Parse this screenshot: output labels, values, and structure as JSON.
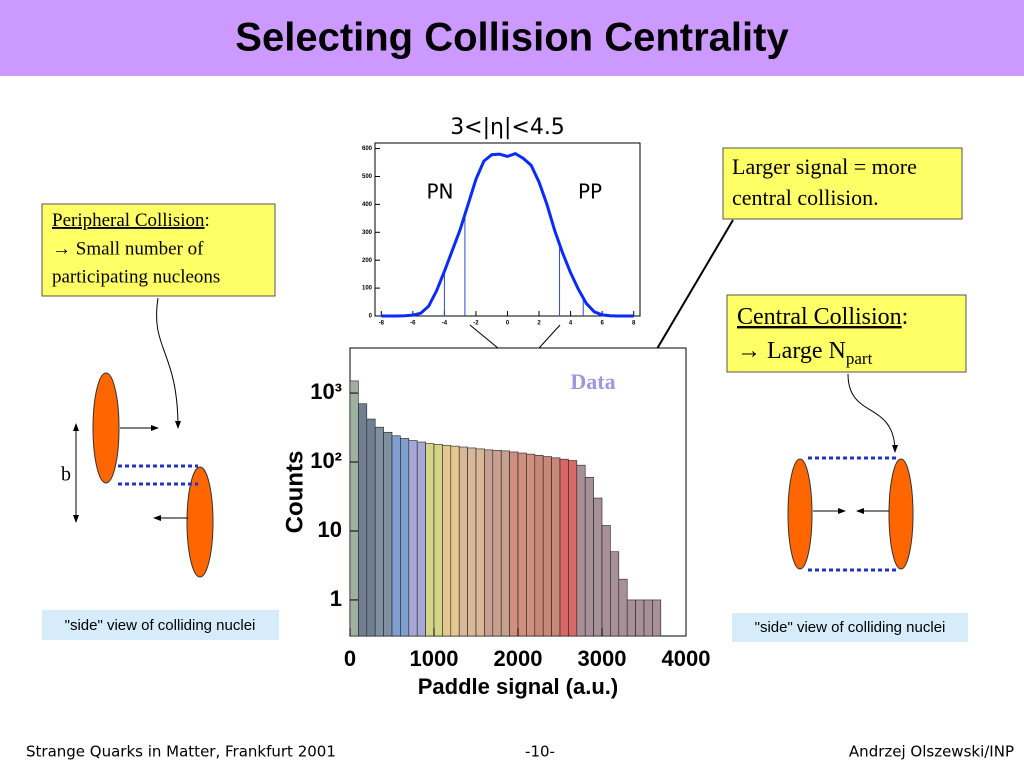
{
  "header": {
    "title": "Selecting Collision Centrality"
  },
  "peripheral": {
    "heading": "Peripheral Collision",
    "heading_rest": ":",
    "lines": [
      "→ Small number of",
      "participating nucleons"
    ]
  },
  "central": {
    "heading": "Central Collision",
    "heading_rest": ":",
    "line": "→ Large N",
    "subscript": "part"
  },
  "signal_note": {
    "lines": [
      "Larger signal = more",
      "central collision."
    ]
  },
  "impact_label": "b",
  "captions": [
    "\"side\" view of colliding nuclei",
    "\"side\" view of colliding nuclei"
  ],
  "footer": {
    "left": "Strange Quarks in Matter, Frankfurt 2001",
    "center": "-10-",
    "right": "Andrzej Olszewski/INP"
  },
  "chart_data": [
    {
      "type": "line",
      "title": "3<|η|<4.5",
      "annotations": [
        "PN",
        "PP"
      ],
      "x": [
        -8,
        -7.5,
        -7,
        -6.5,
        -6,
        -5.5,
        -5,
        -4.5,
        -4,
        -3.5,
        -3,
        -2.5,
        -2,
        -1.5,
        -1,
        -0.5,
        0,
        0.5,
        1,
        1.5,
        2,
        2.5,
        3,
        3.5,
        4,
        4.5,
        5,
        5.5,
        6,
        6.5,
        7,
        7.5,
        8
      ],
      "series": [
        {
          "color": "#0a2bff",
          "values": [
            0,
            0,
            0,
            1,
            3,
            10,
            35,
            90,
            160,
            235,
            310,
            400,
            490,
            555,
            578,
            580,
            572,
            582,
            565,
            540,
            480,
            400,
            305,
            225,
            155,
            95,
            45,
            15,
            4,
            1,
            0,
            0,
            0
          ]
        }
      ],
      "cut_lines": [
        -4,
        -2.7,
        3.3,
        4.8
      ],
      "cut_color": "#3344cc",
      "xlim": [
        -8.4,
        8.4
      ],
      "ylim": [
        0,
        620
      ],
      "xticks": [
        -8,
        -6,
        -4,
        -2,
        0,
        2,
        4,
        6,
        8
      ],
      "yticks": [
        0,
        100,
        200,
        300,
        400,
        500,
        600
      ]
    },
    {
      "type": "histogram",
      "annotation": "Data",
      "x_label": "Paddle signal (a.u.)",
      "y_label": "Counts",
      "log_y": true,
      "bins": [
        0,
        100,
        200,
        300,
        400,
        500,
        600,
        700,
        800,
        900,
        1000,
        1100,
        1200,
        1300,
        1400,
        1500,
        1600,
        1700,
        1800,
        1900,
        2000,
        2100,
        2200,
        2300,
        2400,
        2500,
        2600,
        2700,
        2800,
        2900,
        3000,
        3100,
        3200,
        3300,
        3400,
        3500,
        3600,
        3700
      ],
      "counts": [
        1500,
        700,
        420,
        320,
        270,
        240,
        220,
        205,
        195,
        185,
        180,
        175,
        170,
        165,
        160,
        155,
        150,
        148,
        145,
        140,
        135,
        130,
        125,
        120,
        115,
        110,
        105,
        90,
        60,
        30,
        12,
        5,
        2,
        1,
        1,
        1,
        1
      ],
      "colors": [
        "#a0b0a0",
        "#708090",
        "#708090",
        "#8090a0",
        "#8090a0",
        "#7f9fd0",
        "#7f9fd0",
        "#a8a8d8",
        "#a8a8d8",
        "#d4d488",
        "#d4d488",
        "#e4c890",
        "#e4c890",
        "#d8b898",
        "#d8b898",
        "#d8b898",
        "#c8a090",
        "#c8a090",
        "#c8a090",
        "#d09080",
        "#d09080",
        "#d09080",
        "#c88878",
        "#c88878",
        "#c88878",
        "#d86868",
        "#d86868",
        "#a89098",
        "#a89098",
        "#a89098",
        "#a89098",
        "#a89098",
        "#a89098",
        "#a89098",
        "#a89098",
        "#a89098",
        "#a89098"
      ],
      "xlim": [
        0,
        4000
      ],
      "ylim": [
        0.3,
        4500
      ],
      "xticks": [
        0,
        1000,
        2000,
        3000,
        4000
      ],
      "yticks": [
        1,
        10,
        {
          "value": 100,
          "label": "10²"
        },
        {
          "value": 1000,
          "label": "10³"
        }
      ]
    }
  ]
}
